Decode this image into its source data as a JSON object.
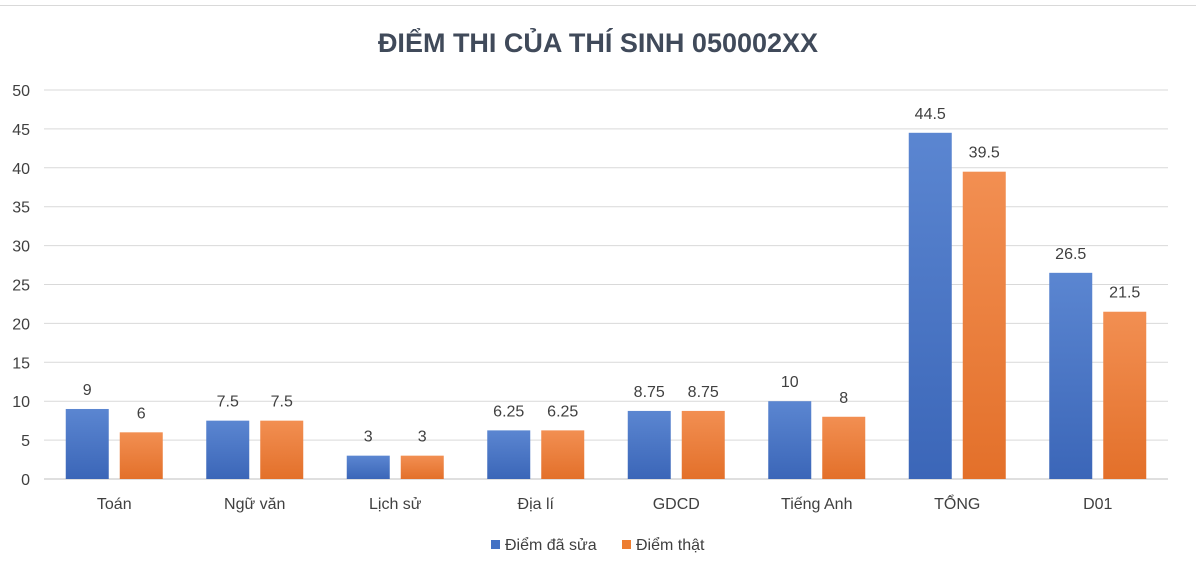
{
  "chart_data": {
    "type": "bar",
    "title": "ĐIỂM THI CỦA THÍ  SINH 050002XX",
    "categories": [
      "Toán",
      "Ngữ văn",
      "Lịch sử",
      "Địa lí",
      "GDCD",
      "Tiếng Anh",
      "TỔNG",
      "D01"
    ],
    "series": [
      {
        "name": "Điểm  đã sửa",
        "values": [
          9,
          7.5,
          3,
          6.25,
          8.75,
          10,
          44.5,
          26.5
        ],
        "color": "#4472c4"
      },
      {
        "name": "Điểm thật",
        "values": [
          6,
          7.5,
          3,
          6.25,
          8.75,
          8,
          39.5,
          21.5
        ],
        "color": "#ed7d31"
      }
    ],
    "ylim": [
      0,
      50
    ],
    "yticks": [
      "0",
      "5",
      "10",
      "15",
      "20",
      "25",
      "30",
      "35",
      "40",
      "45",
      "50"
    ],
    "grid": true,
    "legend": "bottom"
  }
}
